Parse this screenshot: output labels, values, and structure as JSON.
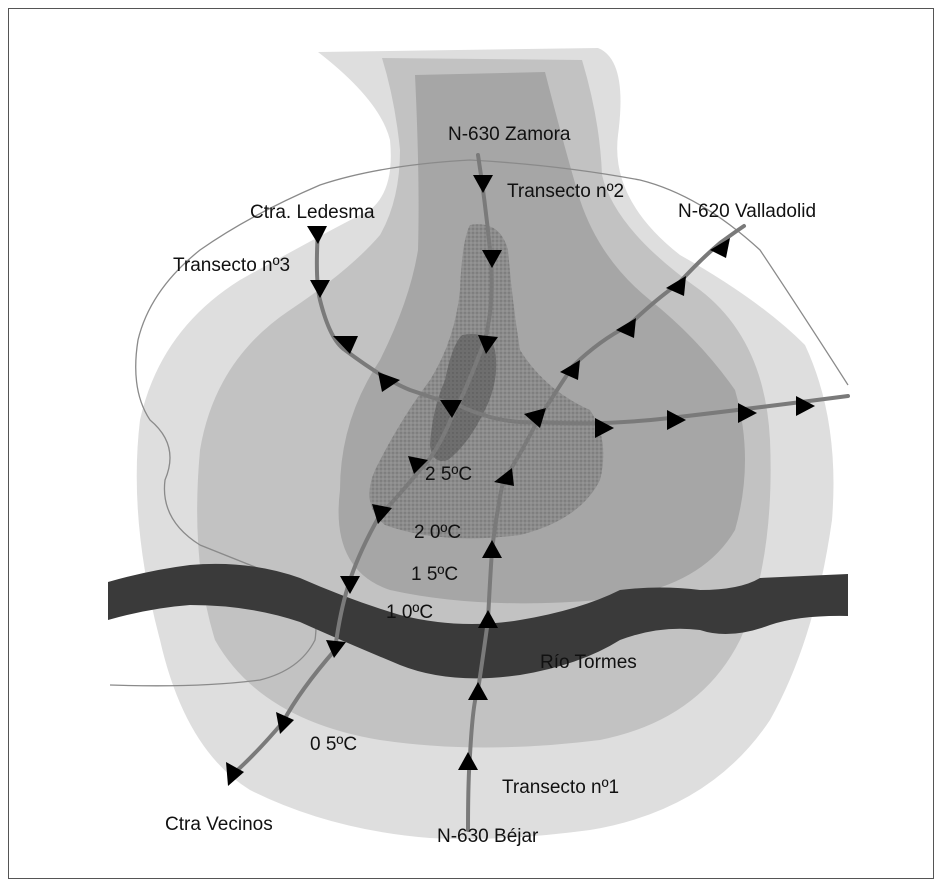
{
  "roads": {
    "zamora": "N-630 Zamora",
    "valladolid": "N-620 Valladolid",
    "ledesma": "Ctra. Ledesma",
    "vecinos": "Ctra Vecinos",
    "bejar": "N-630 Béjar"
  },
  "transects": {
    "t1": "Transecto nº1",
    "t2": "Transecto nº2",
    "t3": "Transecto nº3"
  },
  "river": {
    "name": "Río Tormes"
  },
  "isotherms": {
    "i25": "2 5ºC",
    "i20": "2 0ºC",
    "i15": "1 5ºC",
    "i10": "1 0ºC",
    "i05": "0 5ºC"
  },
  "colors": {
    "zone_05": "#dedede",
    "zone_10": "#c0c0c0",
    "zone_15": "#a4a4a4",
    "zone_20": "#8c8c8c",
    "zone_25": "#6e6e6e",
    "river": "#3a3a3a",
    "transect": "#7a7a7a"
  }
}
